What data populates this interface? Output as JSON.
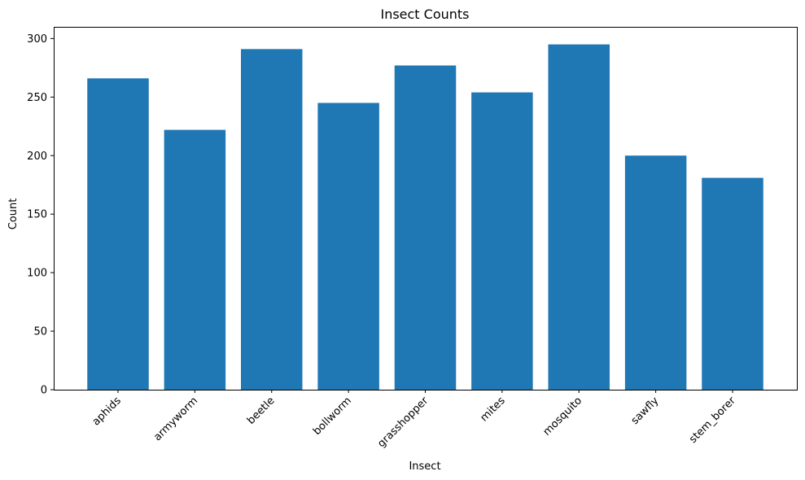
{
  "chart_data": {
    "type": "bar",
    "title": "Insect Counts",
    "xlabel": "Insect",
    "ylabel": "Count",
    "categories": [
      "aphids",
      "armyworm",
      "beetle",
      "bollworm",
      "grasshopper",
      "mites",
      "mosquito",
      "sawfly",
      "stem_borer"
    ],
    "values": [
      266,
      222,
      291,
      245,
      277,
      254,
      295,
      200,
      181
    ],
    "ylim": [
      0,
      310
    ],
    "yticks": [
      0,
      50,
      100,
      150,
      200,
      250,
      300
    ],
    "grid": false,
    "legend": "none",
    "bar_color": "#1f77b4"
  }
}
